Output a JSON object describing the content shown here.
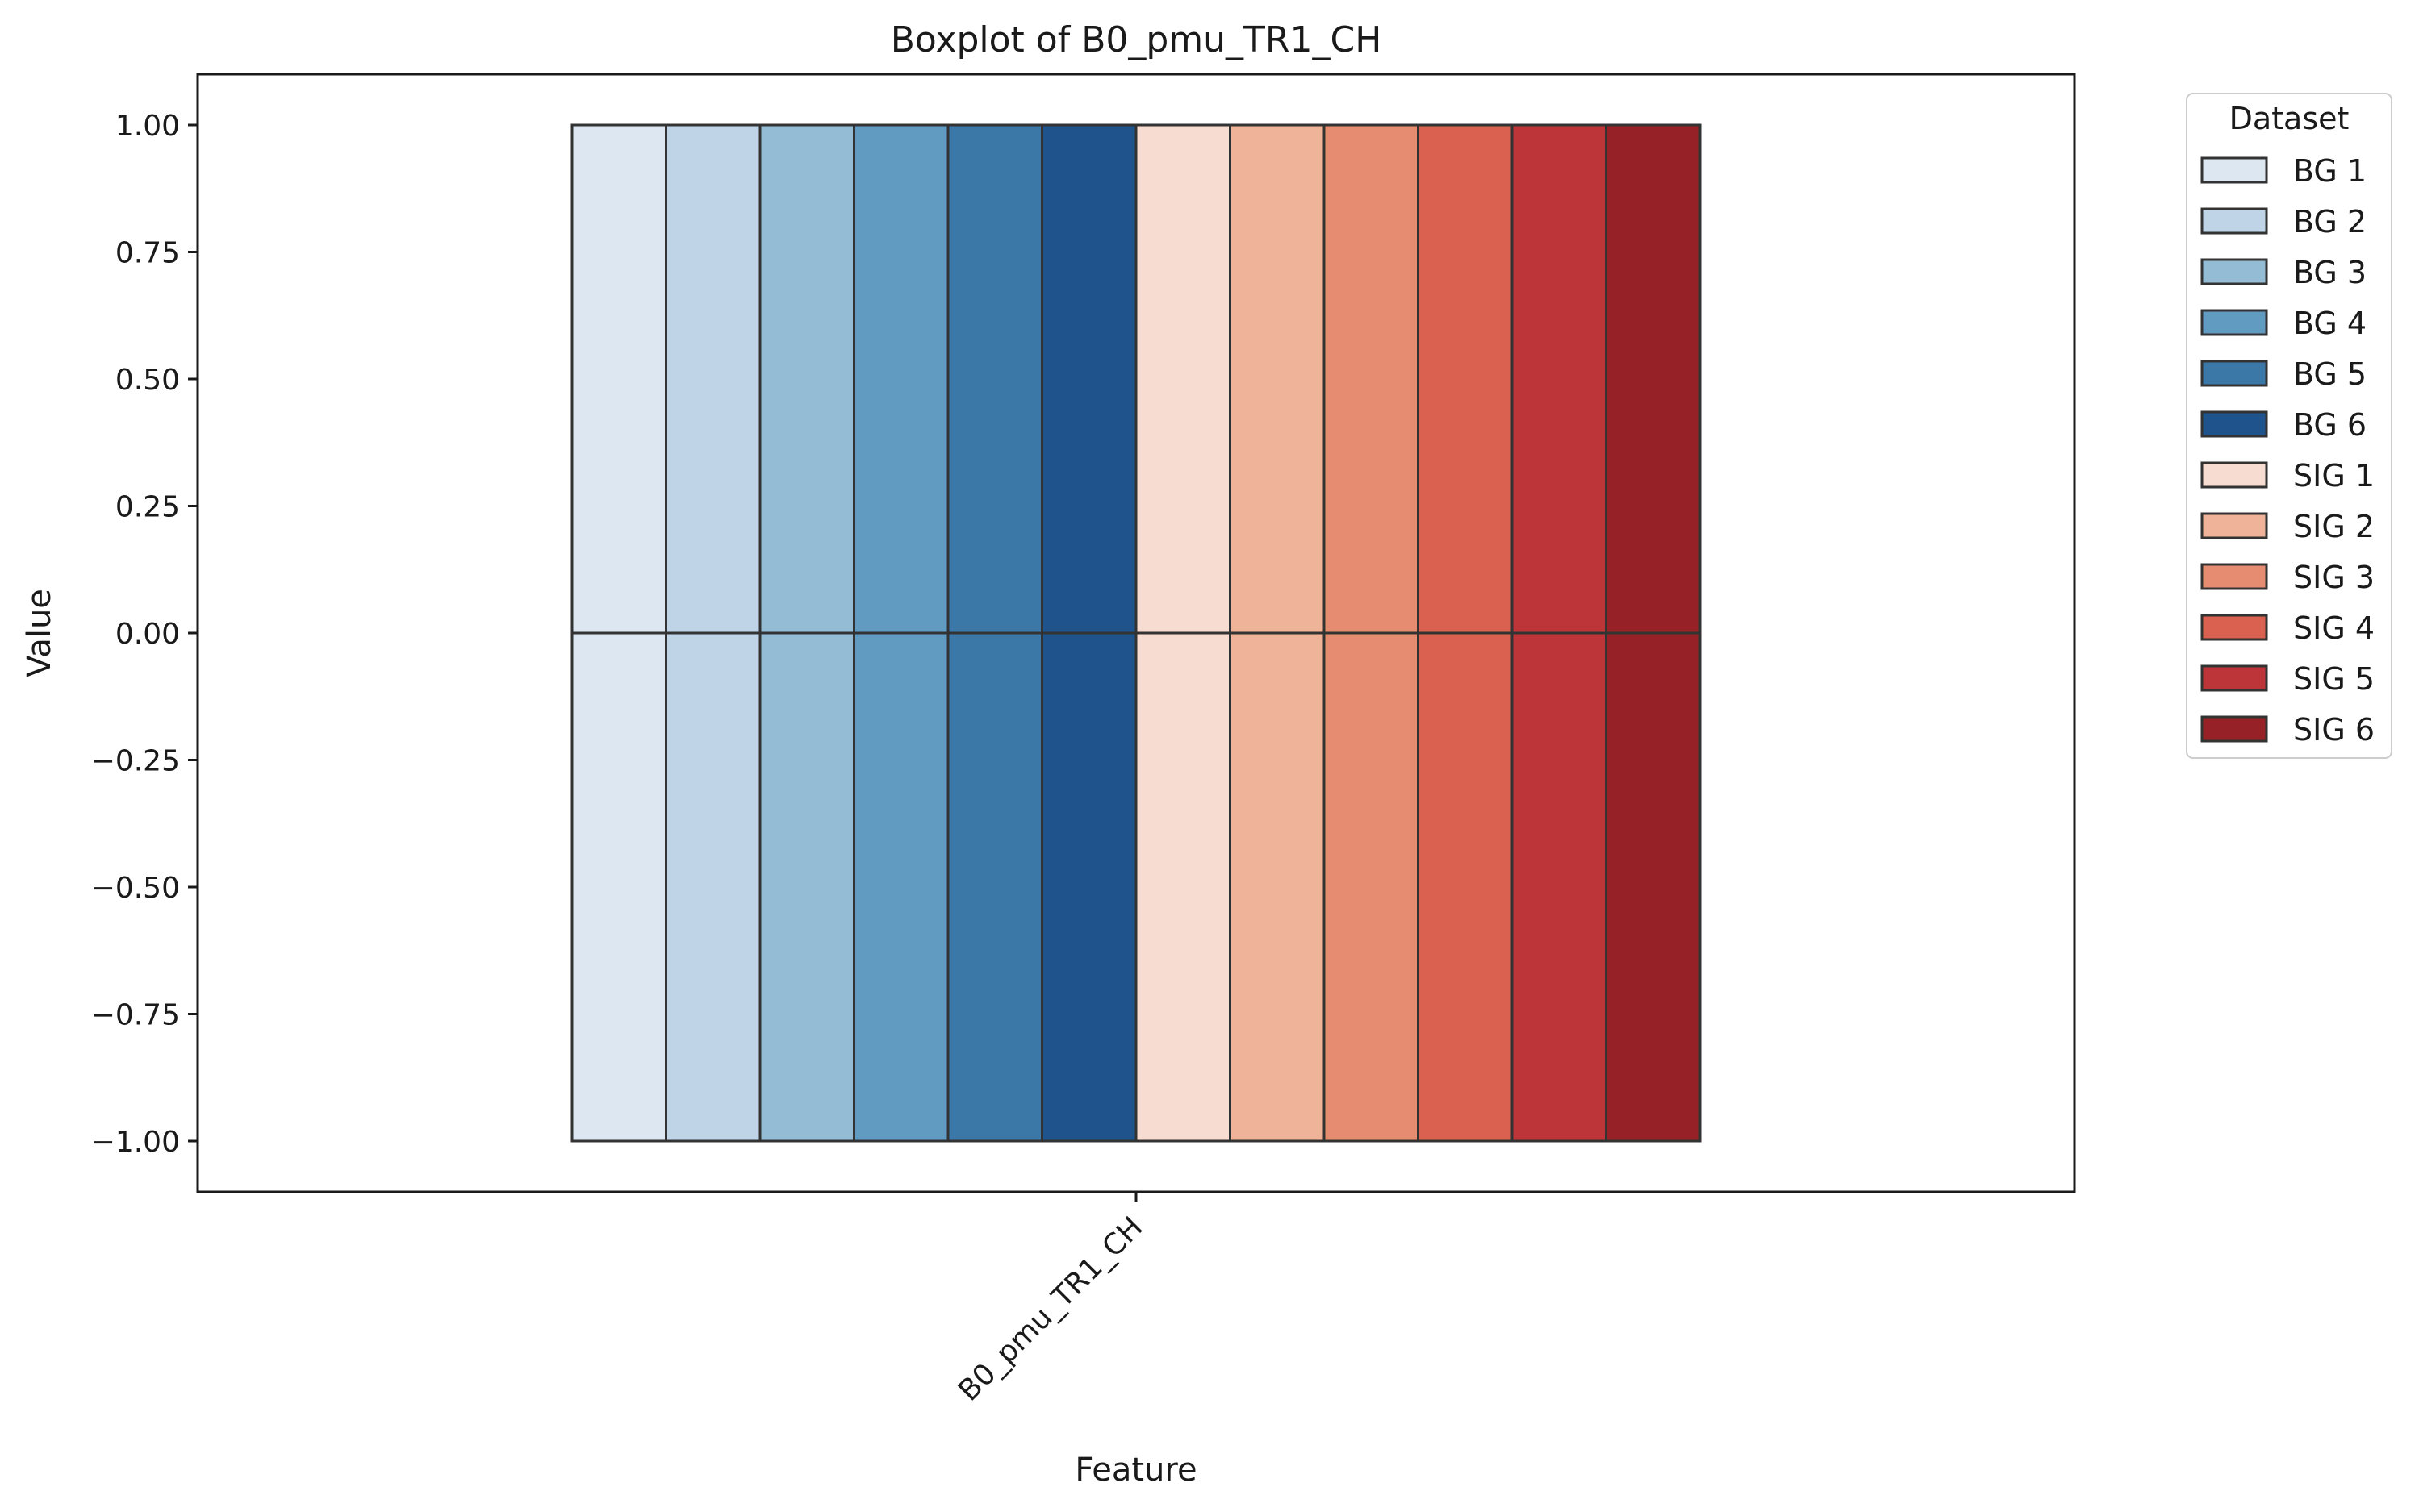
{
  "chart_data": {
    "type": "boxplot",
    "title": "Boxplot of B0_pmu_TR1_CH",
    "xlabel": "Feature",
    "ylabel": "Value",
    "categories": [
      "B0_pmu_TR1_CH"
    ],
    "ylim": [
      -1.1,
      1.1
    ],
    "yticks": [
      1.0,
      0.75,
      0.5,
      0.25,
      0.0,
      -0.25,
      -0.5,
      -0.75,
      -1.0
    ],
    "ytick_labels": [
      "1.00",
      "0.75",
      "0.50",
      "0.25",
      "0.00",
      "−0.25",
      "−0.50",
      "−0.75",
      "−1.00"
    ],
    "grid": false,
    "legend": {
      "title": "Dataset",
      "placement": "outside-right-top"
    },
    "series": [
      {
        "name": "BG 1",
        "color": "#dde7f1",
        "min": -1,
        "q1": -1,
        "median": 0,
        "q3": 1,
        "max": 1
      },
      {
        "name": "BG 2",
        "color": "#bfd5e7",
        "min": -1,
        "q1": -1,
        "median": 0,
        "q3": 1,
        "max": 1
      },
      {
        "name": "BG 3",
        "color": "#94bcd4",
        "min": -1,
        "q1": -1,
        "median": 0,
        "q3": 1,
        "max": 1
      },
      {
        "name": "BG 4",
        "color": "#619bc1",
        "min": -1,
        "q1": -1,
        "median": 0,
        "q3": 1,
        "max": 1
      },
      {
        "name": "BG 5",
        "color": "#3b78a8",
        "min": -1,
        "q1": -1,
        "median": 0,
        "q3": 1,
        "max": 1
      },
      {
        "name": "BG 6",
        "color": "#1f538b",
        "min": -1,
        "q1": -1,
        "median": 0,
        "q3": 1,
        "max": 1
      },
      {
        "name": "SIG 1",
        "color": "#f7ddd1",
        "min": -1,
        "q1": -1,
        "median": 0,
        "q3": 1,
        "max": 1
      },
      {
        "name": "SIG 2",
        "color": "#efb39a",
        "min": -1,
        "q1": -1,
        "median": 0,
        "q3": 1,
        "max": 1
      },
      {
        "name": "SIG 3",
        "color": "#e68c71",
        "min": -1,
        "q1": -1,
        "median": 0,
        "q3": 1,
        "max": 1
      },
      {
        "name": "SIG 4",
        "color": "#da6150",
        "min": -1,
        "q1": -1,
        "median": 0,
        "q3": 1,
        "max": 1
      },
      {
        "name": "SIG 5",
        "color": "#bd3538",
        "min": -1,
        "q1": -1,
        "median": 0,
        "q3": 1,
        "max": 1
      },
      {
        "name": "SIG 6",
        "color": "#962126",
        "min": -1,
        "q1": -1,
        "median": 0,
        "q3": 1,
        "max": 1
      }
    ]
  }
}
